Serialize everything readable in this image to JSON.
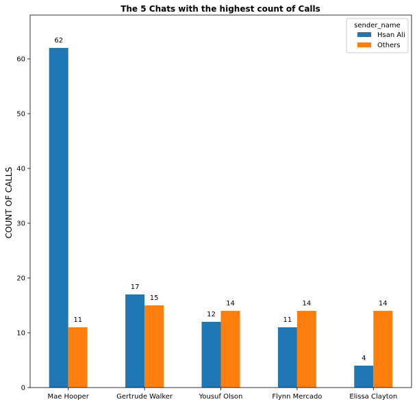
{
  "chart_data": {
    "type": "bar",
    "title": "The 5 Chats with the highest count of Calls",
    "xlabel": "",
    "ylabel": "COUNT OF CALLS",
    "categories": [
      "Mae Hooper",
      "Gertrude Walker",
      "Yousuf Olson",
      "Flynn Mercado",
      "Elissa Clayton"
    ],
    "series": [
      {
        "name": "Hsan Ali",
        "values": [
          62,
          17,
          12,
          11,
          4
        ],
        "color": "#1f77b4"
      },
      {
        "name": "Others",
        "values": [
          11,
          15,
          14,
          14,
          14
        ],
        "color": "#ff7f0e"
      }
    ],
    "ylim": [
      0,
      68
    ],
    "yticks": [
      0,
      10,
      20,
      30,
      40,
      50,
      60
    ],
    "legend": {
      "title": "sender_name",
      "placement": "top-right"
    },
    "grid": false
  }
}
